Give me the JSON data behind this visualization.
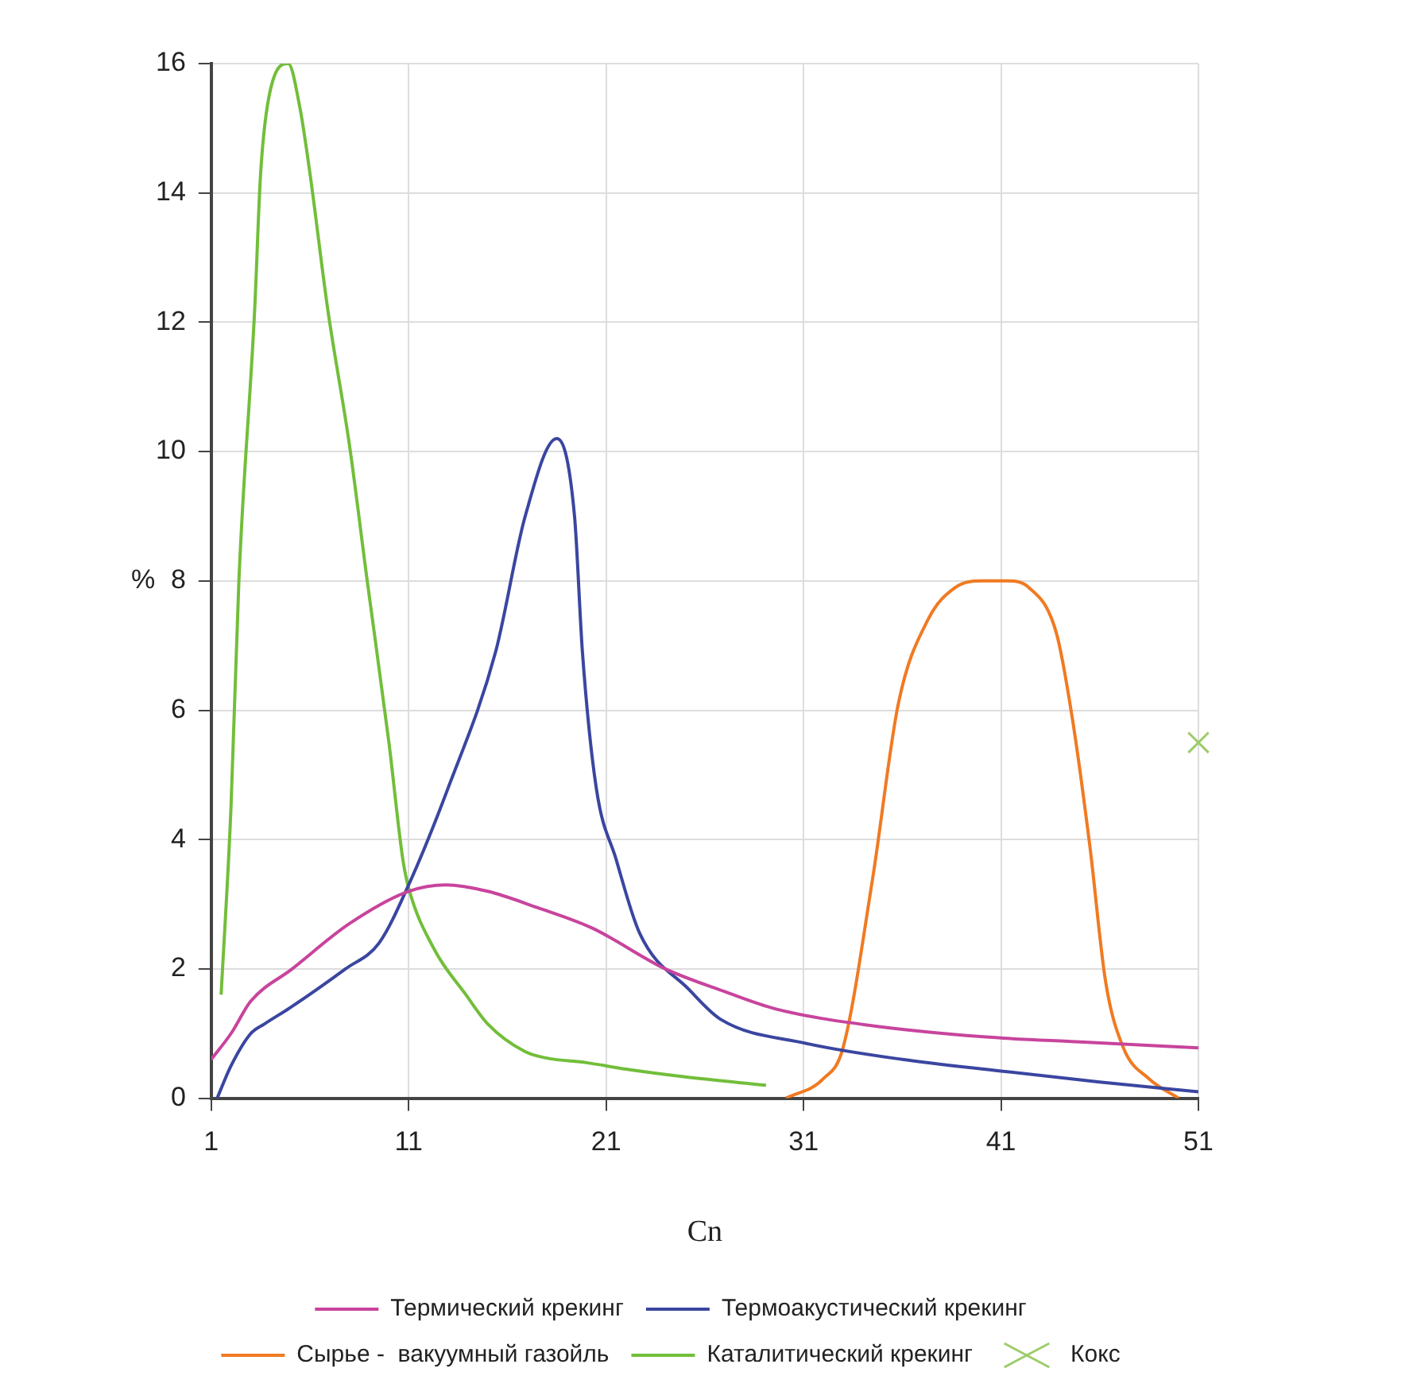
{
  "chart_data": {
    "type": "line",
    "xlabel": "Cn",
    "ylabel": "%",
    "xlim": [
      1,
      51
    ],
    "xticks": [
      1,
      11,
      21,
      31,
      41,
      51
    ],
    "ylim": [
      0,
      16
    ],
    "yticks": [
      0,
      2,
      4,
      6,
      8,
      10,
      12,
      14,
      16
    ],
    "grid": true,
    "legend": "bottom",
    "marker": "none",
    "line_style": "solid",
    "series": [
      {
        "name": "Термический крекинг",
        "color": "#c8449c",
        "x": [
          1,
          2,
          3,
          5.1,
          8,
          11,
          12.9,
          15,
          17.5,
          20.3,
          24,
          27,
          29.6,
          34.5,
          40.1,
          45,
          51
        ],
        "values": [
          0.6,
          1.0,
          1.5,
          2.0,
          2.7,
          3.2,
          3.3,
          3.2,
          2.95,
          2.63,
          2.0,
          1.65,
          1.38,
          1.12,
          0.95,
          0.87,
          0.78
        ]
      },
      {
        "name": "Термоакустический крекинг",
        "color": "#3a46a0",
        "x": [
          1.3,
          2,
          3,
          3.7,
          5,
          7.8,
          9.5,
          11,
          13,
          15.4,
          16.9,
          18.5,
          19.4,
          19.8,
          20.5,
          21.5,
          22.7,
          25.2,
          26.8,
          31.1,
          36,
          41,
          46,
          51
        ],
        "values": [
          0,
          0.5,
          1.0,
          1.15,
          1.4,
          2.0,
          2.4,
          3.3,
          4.8,
          6.9,
          9.0,
          10.2,
          9.0,
          6.9,
          4.8,
          3.7,
          2.55,
          1.68,
          1.22,
          0.85,
          0.6,
          0.42,
          0.25,
          0.1
        ]
      },
      {
        "name": "Сырье -  вакуумный газойль",
        "color": "#f07a22",
        "x": [
          30.1,
          32,
          33,
          34.5,
          35.8,
          37.3,
          38.7,
          40,
          41.3,
          42.4,
          43.8,
          44.6,
          45.5,
          46.3,
          47.2,
          48.5,
          50
        ],
        "values": [
          0,
          0.3,
          0.78,
          3.4,
          6.1,
          7.4,
          7.9,
          8.0,
          8.0,
          7.9,
          7.2,
          5.9,
          3.9,
          1.8,
          0.78,
          0.3,
          0
        ]
      },
      {
        "name": "Каталитический крекинг",
        "color": "#72be3a",
        "x": [
          1.5,
          2,
          2.4,
          3.2,
          3.5,
          4,
          4.9,
          5.5,
          6,
          6.9,
          8,
          8.9,
          10,
          10.7,
          11,
          12.3,
          13.9,
          15,
          16.9,
          18,
          20,
          22,
          25,
          29.1
        ],
        "values": [
          1.6,
          4.5,
          8,
          12.2,
          14.3,
          15.6,
          16,
          15.3,
          14.3,
          12.2,
          10.1,
          8,
          5.5,
          3.7,
          3.25,
          2.3,
          1.6,
          1.15,
          0.72,
          0.62,
          0.55,
          0.45,
          0.33,
          0.2
        ]
      },
      {
        "name": "Кокс",
        "type": "scatter",
        "marker": "cross",
        "color": "#9ccc6a",
        "x": [
          51
        ],
        "values": [
          5.5
        ]
      }
    ]
  }
}
